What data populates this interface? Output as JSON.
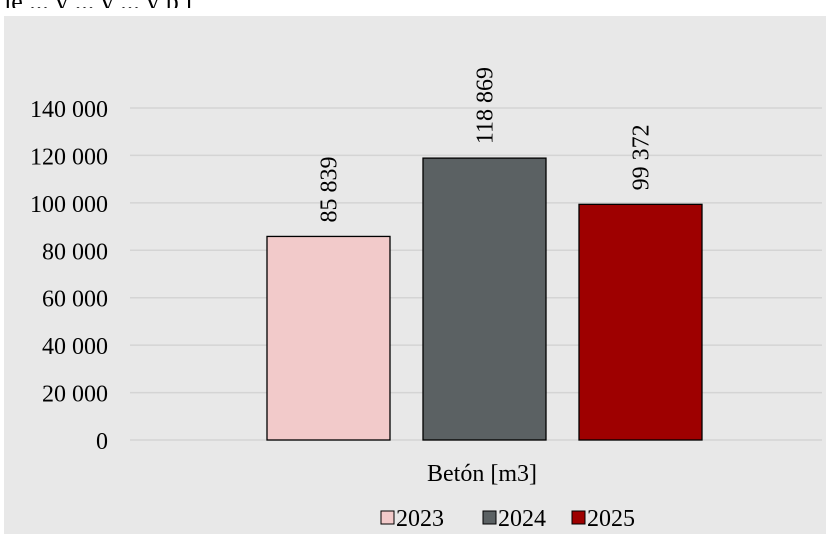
{
  "header_fragment": "je ... y ... y ... y p j",
  "chart_data": {
    "type": "bar",
    "categories": [
      "Betón [m3]"
    ],
    "series": [
      {
        "name": "2023",
        "values": [
          85839
        ],
        "label": "85 839",
        "color": "#f2caca"
      },
      {
        "name": "2024",
        "values": [
          118869
        ],
        "label": "118 869",
        "color": "#5b6163"
      },
      {
        "name": "2025",
        "values": [
          99372
        ],
        "label": "99 372",
        "color": "#9e0000"
      }
    ],
    "ylim": [
      0,
      140000
    ],
    "yticks": [
      {
        "value": 0,
        "label": "0"
      },
      {
        "value": 20000,
        "label": "20 000"
      },
      {
        "value": 40000,
        "label": "40 000"
      },
      {
        "value": 60000,
        "label": "60 000"
      },
      {
        "value": 80000,
        "label": "80 000"
      },
      {
        "value": 100000,
        "label": "100 000"
      },
      {
        "value": 120000,
        "label": "120 000"
      },
      {
        "value": 140000,
        "label": "140 000"
      }
    ],
    "xlabel": "Betón [m3]",
    "grid": true,
    "legend_position": "bottom",
    "background": "#e8e8e8",
    "gridline_color": "#d4d4d4"
  }
}
